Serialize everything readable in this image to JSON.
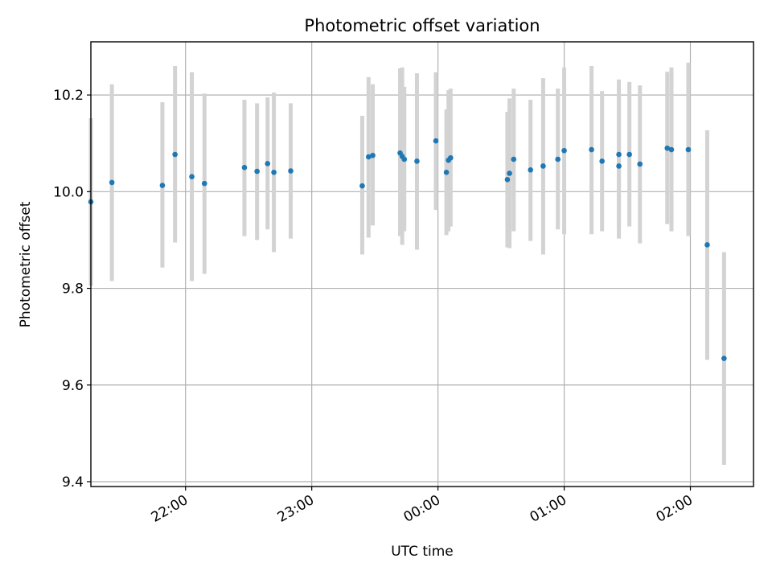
{
  "chart_data": {
    "type": "scatter",
    "title": "Photometric offset variation",
    "xlabel": "UTC time",
    "ylabel": "Photometric offset",
    "x_axis_type": "time",
    "xlim": [
      "21:15",
      "02:30"
    ],
    "ylim": [
      9.39,
      10.31
    ],
    "yticks": [
      9.4,
      9.6,
      9.8,
      10.0,
      10.2
    ],
    "ytick_labels": [
      "9.4",
      "9.6",
      "9.8",
      "10.0",
      "10.2"
    ],
    "xticks": [
      "22:00",
      "23:00",
      "00:00",
      "01:00",
      "02:00"
    ],
    "xtick_labels": [
      "22:00",
      "23:00",
      "00:00",
      "01:00",
      "02:00"
    ],
    "xtick_label_rotation_deg": 30,
    "grid": true,
    "colors": {
      "marker": "#1f77b4",
      "errorbar": "#d3d3d3"
    },
    "series": [
      {
        "points": [
          {
            "x": "21:15",
            "y": 9.979,
            "lo": 9.805,
            "hi": 10.152
          },
          {
            "x": "21:25",
            "y": 10.019,
            "lo": 9.815,
            "hi": 10.222
          },
          {
            "x": "21:49",
            "y": 10.013,
            "lo": 9.843,
            "hi": 10.185
          },
          {
            "x": "21:55",
            "y": 10.077,
            "lo": 9.895,
            "hi": 10.26
          },
          {
            "x": "22:03",
            "y": 10.031,
            "lo": 9.815,
            "hi": 10.247
          },
          {
            "x": "22:09",
            "y": 10.017,
            "lo": 9.83,
            "hi": 10.203
          },
          {
            "x": "22:28",
            "y": 10.05,
            "lo": 9.908,
            "hi": 10.19
          },
          {
            "x": "22:34",
            "y": 10.042,
            "lo": 9.9,
            "hi": 10.183
          },
          {
            "x": "22:39",
            "y": 10.058,
            "lo": 9.922,
            "hi": 10.195
          },
          {
            "x": "22:42",
            "y": 10.04,
            "lo": 9.875,
            "hi": 10.205
          },
          {
            "x": "22:50",
            "y": 10.043,
            "lo": 9.903,
            "hi": 10.183
          },
          {
            "x": "23:24",
            "y": 10.012,
            "lo": 9.87,
            "hi": 10.157
          },
          {
            "x": "23:27",
            "y": 10.072,
            "lo": 9.905,
            "hi": 10.237
          },
          {
            "x": "23:29",
            "y": 10.075,
            "lo": 9.93,
            "hi": 10.222
          },
          {
            "x": "23:42",
            "y": 10.08,
            "lo": 9.908,
            "hi": 10.255
          },
          {
            "x": "23:43",
            "y": 10.073,
            "lo": 9.89,
            "hi": 10.257
          },
          {
            "x": "23:44",
            "y": 10.067,
            "lo": 9.918,
            "hi": 10.217
          },
          {
            "x": "23:50",
            "y": 10.063,
            "lo": 9.88,
            "hi": 10.245
          },
          {
            "x": "23:59",
            "y": 10.105,
            "lo": 9.962,
            "hi": 10.247
          },
          {
            "x": "00:04",
            "y": 10.04,
            "lo": 9.91,
            "hi": 10.17
          },
          {
            "x": "00:05",
            "y": 10.065,
            "lo": 9.918,
            "hi": 10.21
          },
          {
            "x": "00:06",
            "y": 10.07,
            "lo": 9.928,
            "hi": 10.213
          },
          {
            "x": "00:33",
            "y": 10.025,
            "lo": 9.885,
            "hi": 10.165
          },
          {
            "x": "00:34",
            "y": 10.038,
            "lo": 9.883,
            "hi": 10.193
          },
          {
            "x": "00:36",
            "y": 10.067,
            "lo": 9.918,
            "hi": 10.213
          },
          {
            "x": "00:44",
            "y": 10.045,
            "lo": 9.898,
            "hi": 10.19
          },
          {
            "x": "00:50",
            "y": 10.053,
            "lo": 9.87,
            "hi": 10.235
          },
          {
            "x": "00:57",
            "y": 10.067,
            "lo": 9.922,
            "hi": 10.213
          },
          {
            "x": "01:00",
            "y": 10.085,
            "lo": 9.912,
            "hi": 10.257
          },
          {
            "x": "01:13",
            "y": 10.087,
            "lo": 9.912,
            "hi": 10.26
          },
          {
            "x": "01:18",
            "y": 10.063,
            "lo": 9.918,
            "hi": 10.208
          },
          {
            "x": "01:26",
            "y": 10.077,
            "lo": 9.922,
            "hi": 10.232
          },
          {
            "x": "01:26",
            "y": 10.053,
            "lo": 9.903,
            "hi": 10.203
          },
          {
            "x": "01:31",
            "y": 10.077,
            "lo": 9.928,
            "hi": 10.227
          },
          {
            "x": "01:36",
            "y": 10.057,
            "lo": 9.893,
            "hi": 10.22
          },
          {
            "x": "01:49",
            "y": 10.09,
            "lo": 9.933,
            "hi": 10.248
          },
          {
            "x": "01:51",
            "y": 10.087,
            "lo": 9.918,
            "hi": 10.257
          },
          {
            "x": "01:59",
            "y": 10.087,
            "lo": 9.908,
            "hi": 10.267
          },
          {
            "x": "02:08",
            "y": 9.89,
            "lo": 9.652,
            "hi": 10.127
          },
          {
            "x": "02:16",
            "y": 9.655,
            "lo": 9.435,
            "hi": 9.875
          }
        ]
      }
    ]
  }
}
